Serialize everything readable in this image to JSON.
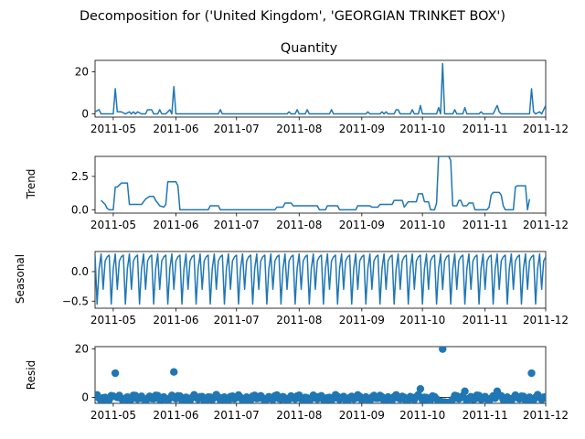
{
  "figure": {
    "suptitle": "Decomposition for ('United Kingdom', 'GEORGIAN TRINKET BOX')"
  },
  "colors": {
    "series": "#1f77b4",
    "axis": "#000000"
  },
  "chart_data": [
    {
      "type": "line",
      "title": "Quantity",
      "ylabel": "",
      "x_range": [
        "2011-04-22",
        "2011-12-01"
      ],
      "x_ticks": [
        "2011-05",
        "2011-06",
        "2011-07",
        "2011-08",
        "2011-09",
        "2011-10",
        "2011-11",
        "2011-12"
      ],
      "y_ticks": [
        "0",
        "20"
      ],
      "ylim": [
        -1.5,
        25.5
      ],
      "grid": false,
      "series": [
        {
          "points": [
            [
              "2011-04-22",
              1
            ],
            [
              "2011-04-24",
              2
            ],
            [
              "2011-04-25",
              0
            ],
            [
              "2011-05-01",
              0
            ],
            [
              "2011-05-02",
              12
            ],
            [
              "2011-05-03",
              1
            ],
            [
              "2011-05-05",
              1
            ],
            [
              "2011-05-07",
              0
            ],
            [
              "2011-05-09",
              1
            ],
            [
              "2011-05-10",
              0
            ],
            [
              "2011-05-11",
              1
            ],
            [
              "2011-05-12",
              0
            ],
            [
              "2011-05-13",
              1
            ],
            [
              "2011-05-15",
              0
            ],
            [
              "2011-05-17",
              0
            ],
            [
              "2011-05-18",
              2
            ],
            [
              "2011-05-20",
              2
            ],
            [
              "2011-05-21",
              0
            ],
            [
              "2011-05-23",
              0
            ],
            [
              "2011-05-24",
              2
            ],
            [
              "2011-05-25",
              0
            ],
            [
              "2011-05-27",
              0
            ],
            [
              "2011-05-29",
              2
            ],
            [
              "2011-05-30",
              0
            ],
            [
              "2011-05-31",
              13
            ],
            [
              "2011-06-01",
              0
            ],
            [
              "2011-06-22",
              0
            ],
            [
              "2011-06-23",
              2
            ],
            [
              "2011-06-24",
              0
            ],
            [
              "2011-07-26",
              0
            ],
            [
              "2011-07-27",
              1
            ],
            [
              "2011-07-28",
              0
            ],
            [
              "2011-07-30",
              0
            ],
            [
              "2011-07-31",
              2
            ],
            [
              "2011-08-01",
              0
            ],
            [
              "2011-08-04",
              0
            ],
            [
              "2011-08-05",
              2
            ],
            [
              "2011-08-06",
              0
            ],
            [
              "2011-08-16",
              0
            ],
            [
              "2011-08-17",
              2
            ],
            [
              "2011-08-18",
              0
            ],
            [
              "2011-09-03",
              0
            ],
            [
              "2011-09-04",
              1
            ],
            [
              "2011-09-05",
              0
            ],
            [
              "2011-09-10",
              0
            ],
            [
              "2011-09-11",
              1
            ],
            [
              "2011-09-12",
              0
            ],
            [
              "2011-09-13",
              1
            ],
            [
              "2011-09-14",
              0
            ],
            [
              "2011-09-17",
              0
            ],
            [
              "2011-09-18",
              2
            ],
            [
              "2011-09-19",
              2
            ],
            [
              "2011-09-20",
              0
            ],
            [
              "2011-09-25",
              0
            ],
            [
              "2011-09-26",
              2
            ],
            [
              "2011-09-27",
              0
            ],
            [
              "2011-09-29",
              0
            ],
            [
              "2011-09-30",
              4
            ],
            [
              "2011-10-01",
              0
            ],
            [
              "2011-10-08",
              0
            ],
            [
              "2011-10-09",
              3
            ],
            [
              "2011-10-10",
              0
            ],
            [
              "2011-10-11",
              24
            ],
            [
              "2011-10-12",
              0
            ],
            [
              "2011-10-16",
              0
            ],
            [
              "2011-10-17",
              2
            ],
            [
              "2011-10-18",
              0
            ],
            [
              "2011-10-21",
              0
            ],
            [
              "2011-10-22",
              3
            ],
            [
              "2011-10-23",
              0
            ],
            [
              "2011-10-29",
              0
            ],
            [
              "2011-10-30",
              1
            ],
            [
              "2011-10-31",
              0
            ],
            [
              "2011-11-05",
              0
            ],
            [
              "2011-11-06",
              2
            ],
            [
              "2011-11-07",
              4
            ],
            [
              "2011-11-08",
              1
            ],
            [
              "2011-11-09",
              0
            ],
            [
              "2011-11-23",
              0
            ],
            [
              "2011-11-24",
              12
            ],
            [
              "2011-11-25",
              1
            ],
            [
              "2011-11-26",
              0
            ],
            [
              "2011-11-28",
              1
            ],
            [
              "2011-11-29",
              0
            ],
            [
              "2011-12-01",
              4
            ]
          ]
        }
      ]
    },
    {
      "type": "line",
      "title": "",
      "ylabel": "Trend",
      "x_range": [
        "2011-04-22",
        "2011-12-01"
      ],
      "x_ticks": [
        "2011-05",
        "2011-06",
        "2011-07",
        "2011-08",
        "2011-09",
        "2011-10",
        "2011-11",
        "2011-12"
      ],
      "y_ticks": [
        "0.0",
        "2.5"
      ],
      "ylim": [
        -0.25,
        4.0
      ],
      "grid": false,
      "series": [
        {
          "points": [
            [
              "2011-04-25",
              0.7
            ],
            [
              "2011-04-27",
              0.4
            ],
            [
              "2011-04-28",
              0.1
            ],
            [
              "2011-04-29",
              0.0
            ],
            [
              "2011-05-01",
              0.0
            ],
            [
              "2011-05-02",
              1.7
            ],
            [
              "2011-05-03",
              1.7
            ],
            [
              "2011-05-05",
              2.0
            ],
            [
              "2011-05-08",
              2.0
            ],
            [
              "2011-05-09",
              0.4
            ],
            [
              "2011-05-15",
              0.4
            ],
            [
              "2011-05-17",
              0.8
            ],
            [
              "2011-05-19",
              1.0
            ],
            [
              "2011-05-21",
              1.0
            ],
            [
              "2011-05-22",
              0.7
            ],
            [
              "2011-05-24",
              0.3
            ],
            [
              "2011-05-26",
              0.2
            ],
            [
              "2011-05-27",
              0.4
            ],
            [
              "2011-05-28",
              2.1
            ],
            [
              "2011-06-01",
              2.1
            ],
            [
              "2011-06-02",
              1.8
            ],
            [
              "2011-06-03",
              0.0
            ],
            [
              "2011-06-17",
              0.0
            ],
            [
              "2011-06-18",
              0.3
            ],
            [
              "2011-06-22",
              0.3
            ],
            [
              "2011-06-23",
              0.0
            ],
            [
              "2011-07-20",
              0.0
            ],
            [
              "2011-07-21",
              0.2
            ],
            [
              "2011-07-24",
              0.2
            ],
            [
              "2011-07-25",
              0.5
            ],
            [
              "2011-07-28",
              0.5
            ],
            [
              "2011-07-29",
              0.3
            ],
            [
              "2011-08-10",
              0.3
            ],
            [
              "2011-08-11",
              0.0
            ],
            [
              "2011-08-14",
              0.0
            ],
            [
              "2011-08-15",
              0.3
            ],
            [
              "2011-08-20",
              0.3
            ],
            [
              "2011-08-21",
              0.0
            ],
            [
              "2011-08-29",
              0.0
            ],
            [
              "2011-08-30",
              0.3
            ],
            [
              "2011-09-05",
              0.3
            ],
            [
              "2011-09-06",
              0.2
            ],
            [
              "2011-09-09",
              0.2
            ],
            [
              "2011-09-10",
              0.4
            ],
            [
              "2011-09-16",
              0.4
            ],
            [
              "2011-09-17",
              0.7
            ],
            [
              "2011-09-21",
              0.7
            ],
            [
              "2011-09-22",
              0.2
            ],
            [
              "2011-09-24",
              0.6
            ],
            [
              "2011-09-28",
              0.6
            ],
            [
              "2011-09-29",
              1.2
            ],
            [
              "2011-10-01",
              1.2
            ],
            [
              "2011-10-02",
              0.6
            ],
            [
              "2011-10-04",
              0.6
            ],
            [
              "2011-10-05",
              0.0
            ],
            [
              "2011-10-07",
              0.0
            ],
            [
              "2011-10-08",
              0.5
            ],
            [
              "2011-10-09",
              4.0
            ],
            [
              "2011-10-14",
              4.0
            ],
            [
              "2011-10-15",
              3.7
            ],
            [
              "2011-10-16",
              0.3
            ],
            [
              "2011-10-18",
              0.3
            ],
            [
              "2011-10-19",
              0.7
            ],
            [
              "2011-10-20",
              0.7
            ],
            [
              "2011-10-21",
              0.3
            ],
            [
              "2011-10-23",
              0.3
            ],
            [
              "2011-10-24",
              0.5
            ],
            [
              "2011-10-26",
              0.5
            ],
            [
              "2011-10-27",
              0.0
            ],
            [
              "2011-11-02",
              0.0
            ],
            [
              "2011-11-03",
              0.2
            ],
            [
              "2011-11-04",
              1.1
            ],
            [
              "2011-11-05",
              1.3
            ],
            [
              "2011-11-08",
              1.3
            ],
            [
              "2011-11-09",
              1.1
            ],
            [
              "2011-11-10",
              0.3
            ],
            [
              "2011-11-11",
              0.0
            ],
            [
              "2011-11-15",
              0.0
            ],
            [
              "2011-11-16",
              1.7
            ],
            [
              "2011-11-17",
              1.8
            ],
            [
              "2011-11-21",
              1.8
            ],
            [
              "2011-11-22",
              0.0
            ],
            [
              "2011-11-23",
              0.8
            ]
          ]
        }
      ]
    },
    {
      "type": "line",
      "title": "",
      "ylabel": "Seasonal",
      "x_range": [
        "2011-04-22",
        "2011-12-01"
      ],
      "x_ticks": [
        "2011-05",
        "2011-06",
        "2011-07",
        "2011-08",
        "2011-09",
        "2011-10",
        "2011-11",
        "2011-12"
      ],
      "y_ticks": [
        "0.0",
        "−0.5"
      ],
      "ylim": [
        -0.62,
        0.34
      ],
      "grid": false,
      "period_days": 7,
      "weekly_pattern": [
        0.28,
        -0.55,
        0.05,
        0.3,
        -0.3,
        0.18,
        0.25
      ],
      "series": []
    },
    {
      "type": "scatter",
      "title": "",
      "ylabel": "Resid",
      "x_range": [
        "2011-04-22",
        "2011-12-01"
      ],
      "x_ticks": [
        "2011-05",
        "2011-06",
        "2011-07",
        "2011-08",
        "2011-09",
        "2011-10",
        "2011-11",
        "2011-12"
      ],
      "y_ticks": [
        "0",
        "20"
      ],
      "ylim": [
        -2.5,
        21.0
      ],
      "baseline": 0,
      "grid": false,
      "outliers": [
        [
          "2011-05-02",
          10
        ],
        [
          "2011-05-31",
          10.5
        ],
        [
          "2011-09-30",
          3.5
        ],
        [
          "2011-10-11",
          20
        ],
        [
          "2011-10-22",
          2.5
        ],
        [
          "2011-11-07",
          2.5
        ],
        [
          "2011-11-24",
          10
        ]
      ],
      "series": []
    }
  ]
}
